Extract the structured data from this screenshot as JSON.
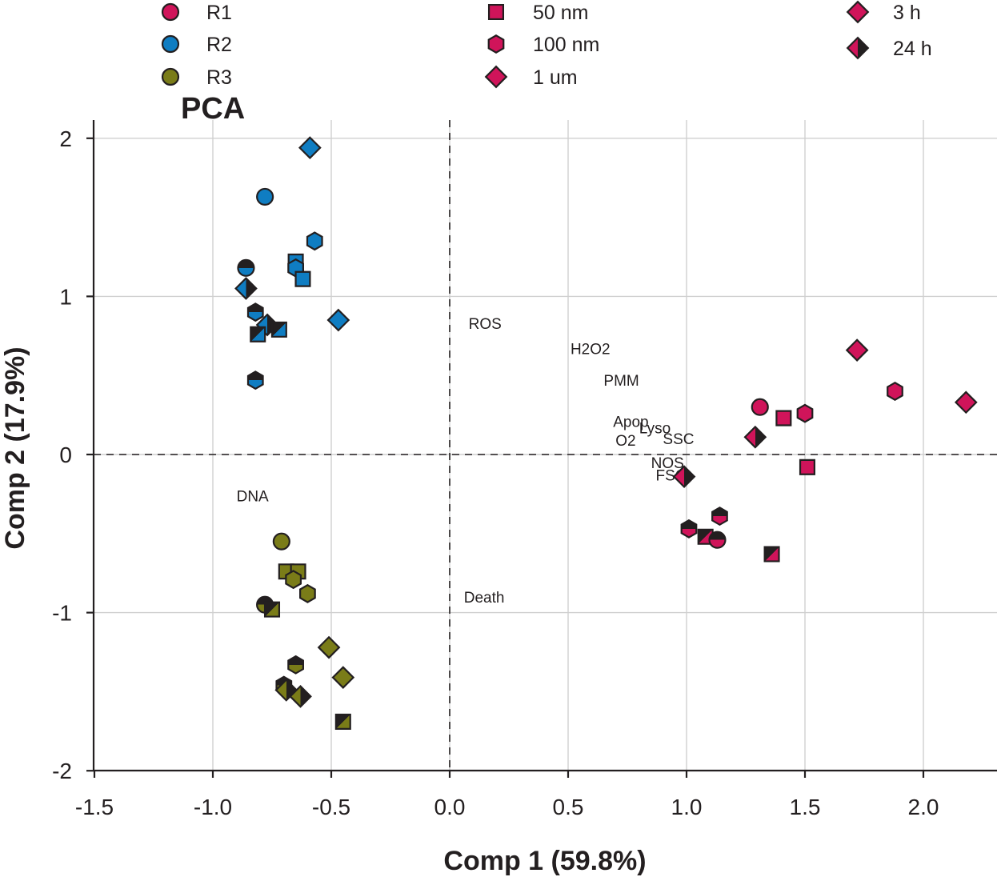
{
  "chart_data": {
    "type": "scatter",
    "title": "PCA",
    "xlabel": "Comp 1 (59.8%)",
    "ylabel": "Comp 2 (17.9%)",
    "xlim": [
      -1.5,
      2.3
    ],
    "ylim": [
      -2.0,
      2.1
    ],
    "xticks": [
      -1.5,
      -1.0,
      -0.5,
      0.0,
      0.5,
      1.0,
      1.5,
      2.0
    ],
    "xtick_labels": [
      "-1.5",
      "-1.0",
      "-0.5",
      "0.0",
      "0.5",
      "1.0",
      "1.5",
      "2.0"
    ],
    "yticks": [
      -2,
      -1,
      0,
      1,
      2
    ],
    "ytick_labels": [
      "-2",
      "-1",
      "0",
      "1",
      "2"
    ],
    "grid": true,
    "zero_lines": "dashed",
    "colors": {
      "R1": "#d0145a",
      "R2": "#0f7dc2",
      "R3": "#7a7c18",
      "dark": "#231f20"
    },
    "legend": {
      "replicate": [
        {
          "label": "R1",
          "color": "R1",
          "shape": "circle"
        },
        {
          "label": "R2",
          "color": "R2",
          "shape": "circle"
        },
        {
          "label": "R3",
          "color": "R3",
          "shape": "circle"
        }
      ],
      "size": [
        {
          "label": "50 nm",
          "shape": "square"
        },
        {
          "label": "100 nm",
          "shape": "hexagon"
        },
        {
          "label": "1 um",
          "shape": "diamond"
        }
      ],
      "time": [
        {
          "label": "3 h",
          "shape": "diamond",
          "fill": "full"
        },
        {
          "label": "24 h",
          "shape": "diamond",
          "fill": "half"
        }
      ]
    },
    "variables": [
      {
        "label": "ROS",
        "x": 0.08,
        "y": 0.83
      },
      {
        "label": "H2O2",
        "x": 0.51,
        "y": 0.67
      },
      {
        "label": "PMM",
        "x": 0.65,
        "y": 0.47
      },
      {
        "label": "Apop",
        "x": 0.69,
        "y": 0.21
      },
      {
        "label": "Lyso",
        "x": 0.8,
        "y": 0.17
      },
      {
        "label": "O2",
        "x": 0.7,
        "y": 0.09
      },
      {
        "label": "SSC",
        "x": 0.9,
        "y": 0.1
      },
      {
        "label": "NOS",
        "x": 0.85,
        "y": -0.05
      },
      {
        "label": "FSC",
        "x": 0.87,
        "y": -0.13
      },
      {
        "label": "DNA",
        "x": -0.9,
        "y": -0.26
      },
      {
        "label": "Death",
        "x": 0.06,
        "y": -0.9
      }
    ],
    "points": [
      {
        "rep": "R1",
        "shape": "circle",
        "time": "3h",
        "x": 1.31,
        "y": 0.3
      },
      {
        "rep": "R1",
        "shape": "square",
        "time": "3h",
        "x": 1.41,
        "y": 0.23
      },
      {
        "rep": "R1",
        "shape": "hexagon",
        "time": "3h",
        "x": 1.5,
        "y": 0.26
      },
      {
        "rep": "R1",
        "shape": "square",
        "time": "3h",
        "x": 1.51,
        "y": -0.08
      },
      {
        "rep": "R1",
        "shape": "diamond",
        "time": "3h",
        "x": 1.72,
        "y": 0.66
      },
      {
        "rep": "R1",
        "shape": "hexagon",
        "time": "3h",
        "x": 1.88,
        "y": 0.4
      },
      {
        "rep": "R1",
        "shape": "diamond",
        "time": "3h",
        "x": 2.18,
        "y": 0.33
      },
      {
        "rep": "R1",
        "shape": "diamond",
        "time": "24h",
        "x": 1.29,
        "y": 0.11
      },
      {
        "rep": "R1",
        "shape": "diamond",
        "time": "24h",
        "x": 0.99,
        "y": -0.14
      },
      {
        "rep": "R1",
        "shape": "hexagon",
        "time": "24h",
        "x": 1.14,
        "y": -0.39
      },
      {
        "rep": "R1",
        "shape": "hexagon",
        "time": "24h",
        "x": 1.01,
        "y": -0.47
      },
      {
        "rep": "R1",
        "shape": "square",
        "time": "24h",
        "x": 1.08,
        "y": -0.52
      },
      {
        "rep": "R1",
        "shape": "circle",
        "time": "24h",
        "x": 1.13,
        "y": -0.54
      },
      {
        "rep": "R1",
        "shape": "square",
        "time": "24h",
        "x": 1.36,
        "y": -0.63
      },
      {
        "rep": "R2",
        "shape": "diamond",
        "time": "3h",
        "x": -0.59,
        "y": 1.94
      },
      {
        "rep": "R2",
        "shape": "circle",
        "time": "3h",
        "x": -0.78,
        "y": 1.63
      },
      {
        "rep": "R2",
        "shape": "hexagon",
        "time": "3h",
        "x": -0.57,
        "y": 1.35
      },
      {
        "rep": "R2",
        "shape": "square",
        "time": "3h",
        "x": -0.65,
        "y": 1.22
      },
      {
        "rep": "R2",
        "shape": "hexagon",
        "time": "3h",
        "x": -0.65,
        "y": 1.18
      },
      {
        "rep": "R2",
        "shape": "square",
        "time": "3h",
        "x": -0.62,
        "y": 1.11
      },
      {
        "rep": "R2",
        "shape": "diamond",
        "time": "3h",
        "x": -0.47,
        "y": 0.85
      },
      {
        "rep": "R2",
        "shape": "circle",
        "time": "24h",
        "x": -0.86,
        "y": 1.18
      },
      {
        "rep": "R2",
        "shape": "diamond",
        "time": "24h",
        "x": -0.86,
        "y": 1.05
      },
      {
        "rep": "R2",
        "shape": "hexagon",
        "time": "24h",
        "x": -0.82,
        "y": 0.9
      },
      {
        "rep": "R2",
        "shape": "diamond",
        "time": "24h",
        "x": -0.77,
        "y": 0.82
      },
      {
        "rep": "R2",
        "shape": "square",
        "time": "24h",
        "x": -0.72,
        "y": 0.79
      },
      {
        "rep": "R2",
        "shape": "square",
        "time": "24h",
        "x": -0.81,
        "y": 0.76
      },
      {
        "rep": "R2",
        "shape": "hexagon",
        "time": "24h",
        "x": -0.82,
        "y": 0.47
      },
      {
        "rep": "R3",
        "shape": "circle",
        "time": "3h",
        "x": -0.71,
        "y": -0.55
      },
      {
        "rep": "R3",
        "shape": "square",
        "time": "3h",
        "x": -0.69,
        "y": -0.74
      },
      {
        "rep": "R3",
        "shape": "square",
        "time": "3h",
        "x": -0.64,
        "y": -0.74
      },
      {
        "rep": "R3",
        "shape": "hexagon",
        "time": "3h",
        "x": -0.66,
        "y": -0.79
      },
      {
        "rep": "R3",
        "shape": "hexagon",
        "time": "3h",
        "x": -0.6,
        "y": -0.88
      },
      {
        "rep": "R3",
        "shape": "diamond",
        "time": "3h",
        "x": -0.51,
        "y": -1.22
      },
      {
        "rep": "R3",
        "shape": "diamond",
        "time": "3h",
        "x": -0.45,
        "y": -1.41
      },
      {
        "rep": "R3",
        "shape": "circle",
        "time": "24h",
        "x": -0.78,
        "y": -0.95
      },
      {
        "rep": "R3",
        "shape": "square",
        "time": "24h",
        "x": -0.75,
        "y": -0.98
      },
      {
        "rep": "R3",
        "shape": "hexagon",
        "time": "24h",
        "x": -0.65,
        "y": -1.33
      },
      {
        "rep": "R3",
        "shape": "hexagon",
        "time": "24h",
        "x": -0.7,
        "y": -1.46
      },
      {
        "rep": "R3",
        "shape": "diamond",
        "time": "24h",
        "x": -0.69,
        "y": -1.49
      },
      {
        "rep": "R3",
        "shape": "diamond",
        "time": "24h",
        "x": -0.63,
        "y": -1.53
      },
      {
        "rep": "R3",
        "shape": "square",
        "time": "24h",
        "x": -0.45,
        "y": -1.69
      }
    ]
  }
}
